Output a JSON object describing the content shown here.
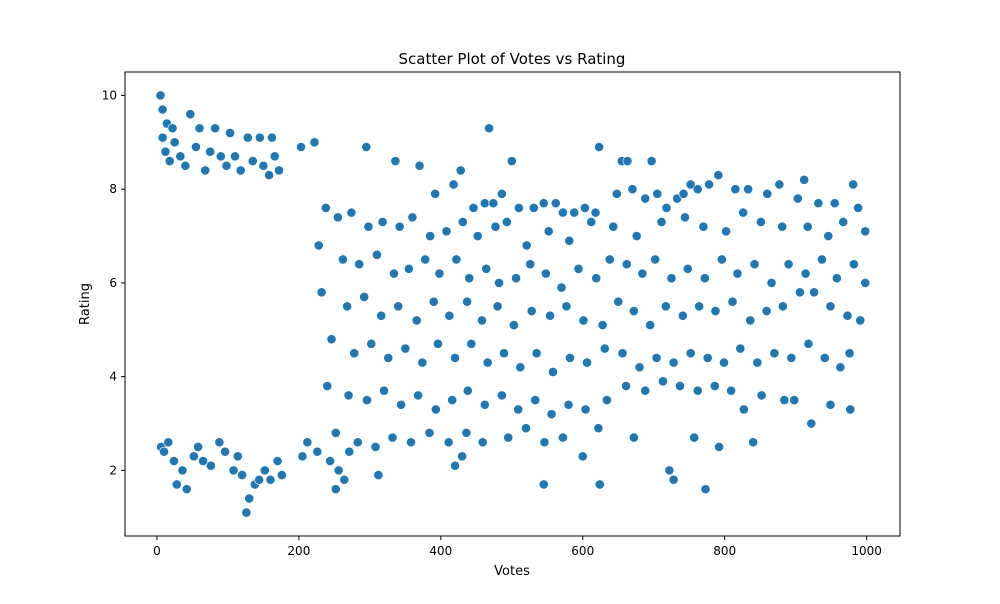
{
  "chart_data": {
    "type": "scatter",
    "title": "Scatter Plot of Votes vs Rating",
    "xlabel": "Votes",
    "ylabel": "Rating",
    "xlim": [
      -45,
      1047
    ],
    "ylim": [
      0.6,
      10.5
    ],
    "xticks": [
      0,
      200,
      400,
      600,
      800,
      1000
    ],
    "yticks": [
      2,
      4,
      6,
      8,
      10
    ],
    "grid": false,
    "marker_color": "#1f77b4",
    "marker_edge_color": "#ffffff",
    "series": [
      {
        "points": [
          [
            5,
            10.0
          ],
          [
            8,
            9.7
          ],
          [
            14,
            9.4
          ],
          [
            22,
            9.3
          ],
          [
            47,
            9.6
          ],
          [
            60,
            9.3
          ],
          [
            82,
            9.3
          ],
          [
            103,
            9.2
          ],
          [
            128,
            9.1
          ],
          [
            145,
            9.1
          ],
          [
            162,
            9.1
          ],
          [
            203,
            8.9
          ],
          [
            222,
            9.0
          ],
          [
            295,
            8.9
          ],
          [
            468,
            9.3
          ],
          [
            500,
            8.6
          ],
          [
            623,
            8.9
          ],
          [
            655,
            8.6
          ],
          [
            663,
            8.6
          ],
          [
            697,
            8.6
          ],
          [
            336,
            8.6
          ],
          [
            370,
            8.5
          ],
          [
            392,
            7.9
          ],
          [
            418,
            8.1
          ],
          [
            428,
            8.4
          ],
          [
            446,
            7.6
          ],
          [
            462,
            7.7
          ],
          [
            474,
            7.7
          ],
          [
            486,
            7.9
          ],
          [
            510,
            7.6
          ],
          [
            531,
            7.6
          ],
          [
            545,
            7.7
          ],
          [
            562,
            7.7
          ],
          [
            572,
            7.5
          ],
          [
            588,
            7.5
          ],
          [
            603,
            7.6
          ],
          [
            618,
            7.5
          ],
          [
            648,
            7.9
          ],
          [
            670,
            8.0
          ],
          [
            688,
            7.8
          ],
          [
            705,
            7.9
          ],
          [
            718,
            7.6
          ],
          [
            733,
            7.8
          ],
          [
            742,
            7.9
          ],
          [
            752,
            8.1
          ],
          [
            762,
            8.0
          ],
          [
            778,
            8.1
          ],
          [
            791,
            8.3
          ],
          [
            815,
            8.0
          ],
          [
            833,
            8.0
          ],
          [
            860,
            7.9
          ],
          [
            877,
            8.1
          ],
          [
            903,
            7.8
          ],
          [
            912,
            8.2
          ],
          [
            932,
            7.7
          ],
          [
            955,
            7.7
          ],
          [
            981,
            8.1
          ],
          [
            988,
            7.6
          ],
          [
            238,
            7.6
          ],
          [
            255,
            7.4
          ],
          [
            274,
            7.5
          ],
          [
            298,
            7.2
          ],
          [
            318,
            7.3
          ],
          [
            342,
            7.2
          ],
          [
            360,
            7.4
          ],
          [
            385,
            7.0
          ],
          [
            408,
            7.1
          ],
          [
            431,
            7.3
          ],
          [
            452,
            7.0
          ],
          [
            477,
            7.2
          ],
          [
            493,
            7.3
          ],
          [
            521,
            6.8
          ],
          [
            552,
            7.1
          ],
          [
            581,
            6.9
          ],
          [
            612,
            7.3
          ],
          [
            643,
            7.2
          ],
          [
            676,
            7.0
          ],
          [
            711,
            7.3
          ],
          [
            744,
            7.4
          ],
          [
            770,
            7.2
          ],
          [
            802,
            7.1
          ],
          [
            826,
            7.5
          ],
          [
            851,
            7.3
          ],
          [
            881,
            7.2
          ],
          [
            917,
            7.2
          ],
          [
            946,
            7.0
          ],
          [
            967,
            7.3
          ],
          [
            998,
            7.1
          ],
          [
            228,
            6.8
          ],
          [
            262,
            6.5
          ],
          [
            285,
            6.4
          ],
          [
            310,
            6.6
          ],
          [
            334,
            6.2
          ],
          [
            355,
            6.3
          ],
          [
            378,
            6.5
          ],
          [
            398,
            6.2
          ],
          [
            422,
            6.5
          ],
          [
            440,
            6.1
          ],
          [
            464,
            6.3
          ],
          [
            482,
            6.0
          ],
          [
            506,
            6.1
          ],
          [
            526,
            6.4
          ],
          [
            548,
            6.2
          ],
          [
            570,
            5.9
          ],
          [
            594,
            6.3
          ],
          [
            619,
            6.1
          ],
          [
            638,
            6.5
          ],
          [
            662,
            6.4
          ],
          [
            684,
            6.2
          ],
          [
            702,
            6.5
          ],
          [
            725,
            6.1
          ],
          [
            748,
            6.3
          ],
          [
            772,
            6.1
          ],
          [
            796,
            6.5
          ],
          [
            818,
            6.2
          ],
          [
            842,
            6.4
          ],
          [
            866,
            6.0
          ],
          [
            890,
            6.4
          ],
          [
            914,
            6.2
          ],
          [
            937,
            6.5
          ],
          [
            958,
            6.1
          ],
          [
            982,
            6.4
          ],
          [
            998,
            6.0
          ],
          [
            232,
            5.8
          ],
          [
            268,
            5.5
          ],
          [
            292,
            5.7
          ],
          [
            316,
            5.3
          ],
          [
            340,
            5.5
          ],
          [
            366,
            5.2
          ],
          [
            390,
            5.6
          ],
          [
            412,
            5.3
          ],
          [
            437,
            5.6
          ],
          [
            458,
            5.2
          ],
          [
            480,
            5.5
          ],
          [
            503,
            5.1
          ],
          [
            528,
            5.4
          ],
          [
            554,
            5.3
          ],
          [
            577,
            5.5
          ],
          [
            601,
            5.2
          ],
          [
            628,
            5.1
          ],
          [
            650,
            5.6
          ],
          [
            672,
            5.4
          ],
          [
            695,
            5.1
          ],
          [
            717,
            5.5
          ],
          [
            741,
            5.3
          ],
          [
            764,
            5.5
          ],
          [
            787,
            5.4
          ],
          [
            811,
            5.6
          ],
          [
            836,
            5.2
          ],
          [
            859,
            5.4
          ],
          [
            882,
            5.5
          ],
          [
            906,
            5.8
          ],
          [
            926,
            5.8
          ],
          [
            949,
            5.5
          ],
          [
            973,
            5.3
          ],
          [
            991,
            5.2
          ],
          [
            246,
            4.8
          ],
          [
            278,
            4.5
          ],
          [
            302,
            4.7
          ],
          [
            326,
            4.4
          ],
          [
            350,
            4.6
          ],
          [
            374,
            4.3
          ],
          [
            396,
            4.7
          ],
          [
            420,
            4.4
          ],
          [
            443,
            4.7
          ],
          [
            466,
            4.3
          ],
          [
            489,
            4.5
          ],
          [
            512,
            4.2
          ],
          [
            535,
            4.5
          ],
          [
            558,
            4.1
          ],
          [
            582,
            4.4
          ],
          [
            606,
            4.3
          ],
          [
            631,
            4.6
          ],
          [
            656,
            4.5
          ],
          [
            680,
            4.2
          ],
          [
            704,
            4.4
          ],
          [
            728,
            4.3
          ],
          [
            752,
            4.5
          ],
          [
            776,
            4.4
          ],
          [
            799,
            4.3
          ],
          [
            822,
            4.6
          ],
          [
            846,
            4.3
          ],
          [
            870,
            4.5
          ],
          [
            894,
            4.4
          ],
          [
            918,
            4.7
          ],
          [
            941,
            4.4
          ],
          [
            963,
            4.2
          ],
          [
            976,
            4.5
          ],
          [
            240,
            3.8
          ],
          [
            270,
            3.6
          ],
          [
            296,
            3.5
          ],
          [
            320,
            3.7
          ],
          [
            344,
            3.4
          ],
          [
            368,
            3.6
          ],
          [
            393,
            3.3
          ],
          [
            416,
            3.5
          ],
          [
            438,
            3.7
          ],
          [
            462,
            3.4
          ],
          [
            486,
            3.6
          ],
          [
            509,
            3.3
          ],
          [
            533,
            3.5
          ],
          [
            556,
            3.2
          ],
          [
            580,
            3.4
          ],
          [
            604,
            3.3
          ],
          [
            634,
            3.5
          ],
          [
            661,
            3.8
          ],
          [
            688,
            3.7
          ],
          [
            713,
            3.9
          ],
          [
            737,
            3.8
          ],
          [
            762,
            3.7
          ],
          [
            786,
            3.8
          ],
          [
            809,
            3.7
          ],
          [
            827,
            3.3
          ],
          [
            852,
            3.6
          ],
          [
            884,
            3.5
          ],
          [
            898,
            3.5
          ],
          [
            949,
            3.4
          ],
          [
            977,
            3.3
          ],
          [
            252,
            2.8
          ],
          [
            283,
            2.6
          ],
          [
            308,
            2.5
          ],
          [
            332,
            2.7
          ],
          [
            358,
            2.6
          ],
          [
            384,
            2.8
          ],
          [
            411,
            2.6
          ],
          [
            436,
            2.8
          ],
          [
            459,
            2.6
          ],
          [
            495,
            2.7
          ],
          [
            520,
            2.9
          ],
          [
            546,
            2.6
          ],
          [
            572,
            2.7
          ],
          [
            600,
            2.3
          ],
          [
            622,
            2.9
          ],
          [
            672,
            2.7
          ],
          [
            757,
            2.7
          ],
          [
            792,
            2.5
          ],
          [
            840,
            2.6
          ],
          [
            922,
            3.0
          ],
          [
            212,
            2.6
          ],
          [
            226,
            2.4
          ],
          [
            244,
            2.2
          ],
          [
            256,
            2.0
          ],
          [
            271,
            2.4
          ],
          [
            312,
            1.9
          ],
          [
            420,
            2.1
          ],
          [
            430,
            2.3
          ],
          [
            252,
            1.6
          ],
          [
            264,
            1.8
          ],
          [
            545,
            1.7
          ],
          [
            624,
            1.7
          ],
          [
            722,
            2.0
          ],
          [
            728,
            1.8
          ],
          [
            773,
            1.6
          ],
          [
            205,
            2.3
          ],
          [
            8,
            9.1
          ],
          [
            12,
            8.8
          ],
          [
            18,
            8.6
          ],
          [
            25,
            9.0
          ],
          [
            33,
            8.7
          ],
          [
            40,
            8.5
          ],
          [
            55,
            8.9
          ],
          [
            68,
            8.4
          ],
          [
            75,
            8.8
          ],
          [
            90,
            8.7
          ],
          [
            98,
            8.5
          ],
          [
            110,
            8.7
          ],
          [
            118,
            8.4
          ],
          [
            135,
            8.6
          ],
          [
            150,
            8.5
          ],
          [
            158,
            8.3
          ],
          [
            166,
            8.7
          ],
          [
            172,
            8.4
          ],
          [
            6,
            2.5
          ],
          [
            10,
            2.4
          ],
          [
            16,
            2.6
          ],
          [
            24,
            2.2
          ],
          [
            28,
            1.7
          ],
          [
            36,
            2.0
          ],
          [
            42,
            1.6
          ],
          [
            52,
            2.3
          ],
          [
            58,
            2.5
          ],
          [
            65,
            2.2
          ],
          [
            76,
            2.1
          ],
          [
            88,
            2.6
          ],
          [
            96,
            2.4
          ],
          [
            108,
            2.0
          ],
          [
            114,
            2.3
          ],
          [
            120,
            1.9
          ],
          [
            126,
            1.1
          ],
          [
            130,
            1.4
          ],
          [
            138,
            1.7
          ],
          [
            144,
            1.8
          ],
          [
            152,
            2.0
          ],
          [
            160,
            1.8
          ],
          [
            170,
            2.2
          ],
          [
            176,
            1.9
          ]
        ]
      }
    ]
  }
}
